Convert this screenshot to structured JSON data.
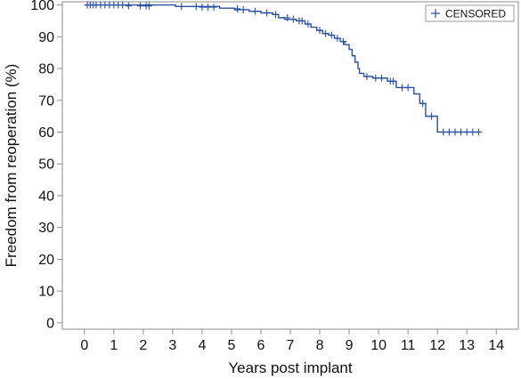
{
  "chart_data": {
    "type": "line",
    "title": "",
    "xlabel": "Years post implant",
    "ylabel": "Freedom from reoperation (%)",
    "xlim": [
      -0.75,
      14.75
    ],
    "ylim": [
      -2,
      101
    ],
    "xticks": [
      0,
      1,
      2,
      3,
      4,
      5,
      6,
      7,
      8,
      9,
      10,
      11,
      12,
      13,
      14
    ],
    "yticks": [
      0,
      10,
      20,
      30,
      40,
      50,
      60,
      70,
      80,
      90,
      100
    ],
    "grid": false,
    "legend": {
      "position": "top-right",
      "entries": [
        "CENSORED"
      ]
    },
    "colors": {
      "series": "#2a4fa0",
      "axis": "#8c8c8c",
      "text": "#111111"
    },
    "series": [
      {
        "step": "post",
        "x": [
          0,
          3.1,
          4.6,
          5.1,
          5.6,
          6.0,
          6.4,
          6.6,
          6.8,
          7.2,
          7.5,
          7.7,
          7.9,
          8.1,
          8.3,
          8.5,
          8.7,
          8.85,
          9.0,
          9.1,
          9.2,
          9.3,
          9.35,
          9.5,
          9.8,
          10.3,
          10.6,
          11.2,
          11.4,
          11.6,
          12.0,
          13.5
        ],
        "y": [
          100,
          99.5,
          99,
          98.5,
          98,
          97.5,
          97,
          96,
          95.5,
          95,
          94,
          93,
          92,
          91,
          90.5,
          89.5,
          88.5,
          87.5,
          86,
          84,
          82,
          80,
          78.5,
          77.5,
          77,
          76,
          74,
          72,
          69,
          65,
          60,
          60
        ]
      }
    ],
    "censored": [
      {
        "x": 0.1,
        "y": 100
      },
      {
        "x": 0.2,
        "y": 100
      },
      {
        "x": 0.3,
        "y": 100
      },
      {
        "x": 0.4,
        "y": 100
      },
      {
        "x": 0.55,
        "y": 100
      },
      {
        "x": 0.7,
        "y": 100
      },
      {
        "x": 0.85,
        "y": 100
      },
      {
        "x": 1.0,
        "y": 100
      },
      {
        "x": 1.15,
        "y": 100
      },
      {
        "x": 1.3,
        "y": 100
      },
      {
        "x": 1.5,
        "y": 99.7
      },
      {
        "x": 1.9,
        "y": 99.7
      },
      {
        "x": 2.1,
        "y": 99.7
      },
      {
        "x": 2.2,
        "y": 99.7
      },
      {
        "x": 3.3,
        "y": 99.5
      },
      {
        "x": 3.8,
        "y": 99.5
      },
      {
        "x": 4.0,
        "y": 99.3
      },
      {
        "x": 4.2,
        "y": 99.3
      },
      {
        "x": 4.4,
        "y": 99.3
      },
      {
        "x": 5.2,
        "y": 98.8
      },
      {
        "x": 5.4,
        "y": 98.5
      },
      {
        "x": 5.8,
        "y": 98
      },
      {
        "x": 6.2,
        "y": 97.5
      },
      {
        "x": 6.5,
        "y": 97
      },
      {
        "x": 6.9,
        "y": 96
      },
      {
        "x": 7.1,
        "y": 95.5
      },
      {
        "x": 7.3,
        "y": 95
      },
      {
        "x": 7.4,
        "y": 95
      },
      {
        "x": 7.6,
        "y": 94
      },
      {
        "x": 8.0,
        "y": 92
      },
      {
        "x": 8.2,
        "y": 91
      },
      {
        "x": 8.4,
        "y": 90.5
      },
      {
        "x": 8.6,
        "y": 89.5
      },
      {
        "x": 8.8,
        "y": 88.5
      },
      {
        "x": 9.6,
        "y": 77.5
      },
      {
        "x": 9.9,
        "y": 77
      },
      {
        "x": 10.1,
        "y": 77
      },
      {
        "x": 10.4,
        "y": 76
      },
      {
        "x": 10.5,
        "y": 76
      },
      {
        "x": 10.8,
        "y": 74
      },
      {
        "x": 11.0,
        "y": 74
      },
      {
        "x": 11.5,
        "y": 69
      },
      {
        "x": 11.8,
        "y": 65
      },
      {
        "x": 12.2,
        "y": 60
      },
      {
        "x": 12.4,
        "y": 60
      },
      {
        "x": 12.6,
        "y": 60
      },
      {
        "x": 12.8,
        "y": 60
      },
      {
        "x": 13.0,
        "y": 60
      },
      {
        "x": 13.2,
        "y": 60
      },
      {
        "x": 13.4,
        "y": 60
      }
    ]
  }
}
